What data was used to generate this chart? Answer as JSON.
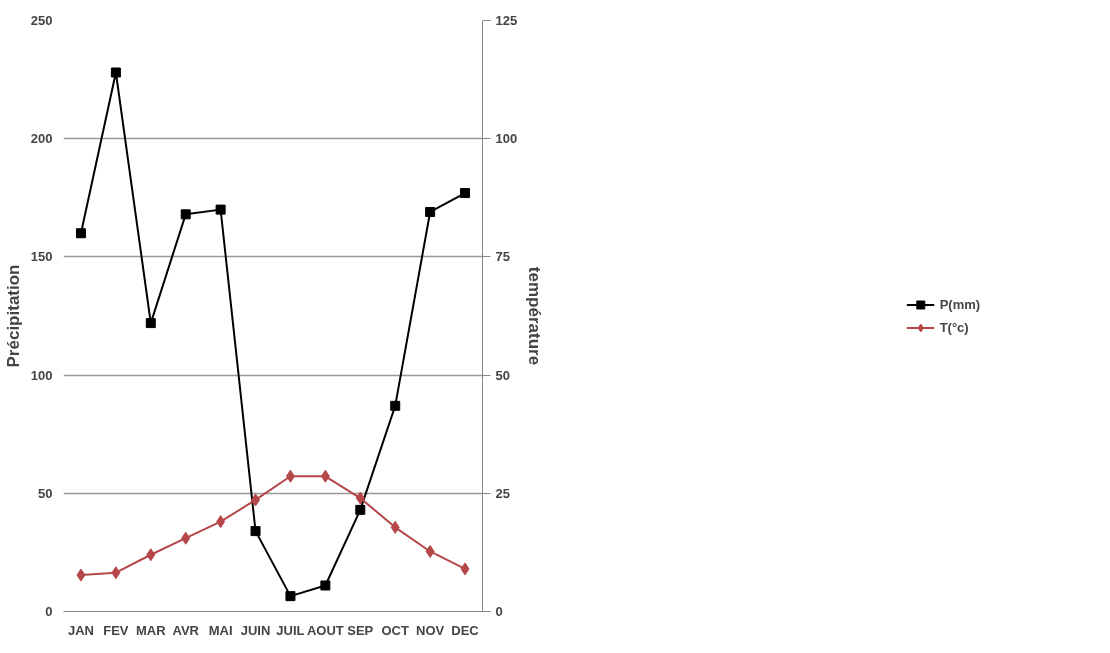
{
  "chart_data": {
    "type": "line",
    "ylabel": "Précipitation",
    "y2label": "température",
    "categories": [
      "JAN",
      "FEV",
      "MAR",
      "AVR",
      "MAI",
      "JUIN",
      "JUIL",
      "AOUT",
      "SEP",
      "OCT",
      "NOV",
      "DEC"
    ],
    "series": [
      {
        "name": "P(mm)",
        "color": "#000000",
        "marker": "square",
        "values": [
          160,
          228,
          122,
          168,
          170,
          34,
          6.5,
          11,
          43,
          87,
          169,
          177
        ]
      },
      {
        "name": "T(°c)",
        "color": "#b5474a",
        "marker": "diamond",
        "axis": "y2",
        "values": [
          7.7,
          8.2,
          12,
          15.5,
          19,
          23.6,
          28.6,
          28.6,
          24,
          17.8,
          12.7,
          9
        ]
      }
    ],
    "ylim": [
      0,
      250
    ],
    "yticks": [
      0,
      50,
      100,
      150,
      200,
      250
    ],
    "y2lim": [
      0,
      125
    ],
    "y2ticks": [
      0,
      25,
      50,
      75,
      100,
      125
    ],
    "grid": "y",
    "legend": "right"
  }
}
